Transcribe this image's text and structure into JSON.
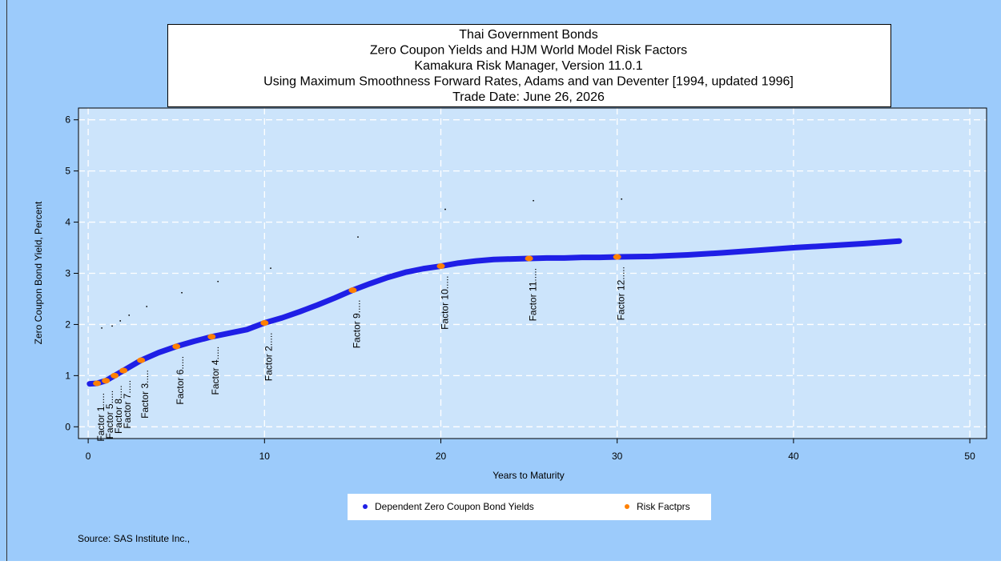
{
  "chart_data": {
    "type": "scatter",
    "title": [
      "Thai Government Bonds",
      "Zero Coupon Yields and HJM World Model Risk Factors",
      "Kamakura Risk Manager, Version 11.0.1",
      "Using Maximum Smoothness Forward Rates, Adams and van Deventer [1994, updated 1996]",
      "Trade Date: June 26, 2026"
    ],
    "x_label": "Years to Maturity",
    "y_label": "Zero Coupon Bond Yield, Percent",
    "source": "Source: SAS Institute Inc.,",
    "xlim": [
      -0.55,
      50.95
    ],
    "ylim": [
      -0.23,
      6.23
    ],
    "xticks": [
      0,
      10,
      20,
      30,
      40,
      50
    ],
    "yticks": [
      0,
      1,
      2,
      3,
      4,
      5,
      6
    ],
    "grid": true,
    "series": [
      {
        "name": "Dependent Zero Coupon Bond Yields",
        "color": "#1f1fe6",
        "x": [
          0.08,
          0.5,
          1,
          1.5,
          2,
          3,
          4,
          5,
          6,
          7,
          8,
          9,
          10,
          11,
          12,
          13,
          14,
          15,
          16,
          17,
          18,
          19,
          20,
          21,
          22,
          23,
          24,
          25,
          26,
          27,
          28,
          29,
          30,
          32,
          34,
          36,
          38,
          40,
          42,
          44,
          46
        ],
        "values": [
          0.84,
          0.85,
          0.9,
          1.0,
          1.1,
          1.3,
          1.45,
          1.57,
          1.67,
          1.76,
          1.83,
          1.9,
          2.03,
          2.13,
          2.25,
          2.38,
          2.52,
          2.67,
          2.8,
          2.92,
          3.02,
          3.09,
          3.14,
          3.2,
          3.24,
          3.27,
          3.28,
          3.29,
          3.3,
          3.3,
          3.31,
          3.31,
          3.32,
          3.33,
          3.36,
          3.4,
          3.45,
          3.5,
          3.54,
          3.58,
          3.63
        ]
      },
      {
        "name": "Risk Factprs",
        "color": "#ff8000",
        "x": [
          0.5,
          1,
          1.5,
          2,
          3,
          5,
          7,
          10,
          15,
          20,
          25,
          30
        ],
        "values": [
          0.85,
          0.9,
          1.0,
          1.1,
          1.3,
          1.57,
          1.76,
          2.03,
          2.67,
          3.14,
          3.29,
          3.32
        ],
        "labels": [
          "Factor 1.....",
          "Factor 5.....",
          "Factor 8.....",
          "Factor 7.....",
          "Factor 3.....",
          "Factor 6.....",
          "Factor 4.....",
          "Factor 2.....",
          "Factor 9.....",
          "Factor 10.....",
          "Factor 11.....",
          "Factor 12....."
        ]
      },
      {
        "color": "#000000",
        "x": [
          0.77,
          1.36,
          1.82,
          2.32,
          3.32,
          5.31,
          7.36,
          10.35,
          15.3,
          20.25,
          25.25,
          30.25
        ],
        "values": [
          1.93,
          1.97,
          2.07,
          2.18,
          2.35,
          2.62,
          2.84,
          3.1,
          3.71,
          4.25,
          4.42,
          4.45
        ]
      }
    ]
  }
}
